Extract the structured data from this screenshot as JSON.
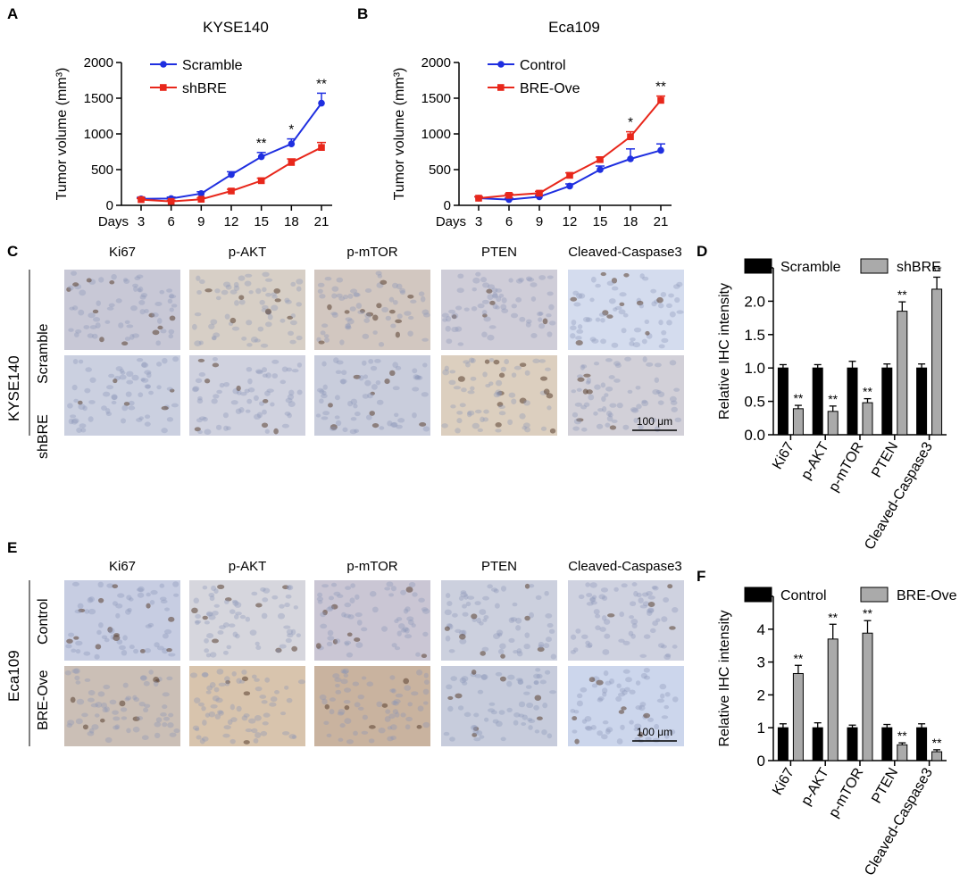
{
  "panels": {
    "A": "A",
    "B": "B",
    "C": "C",
    "D": "D",
    "E": "E",
    "F": "F"
  },
  "images": {
    "markers": [
      "Ki67",
      "p-AKT",
      "p-mTOR",
      "PTEN",
      "Cleaved-Caspase3"
    ],
    "C": {
      "line": "KYSE140",
      "groups": [
        "Scramble",
        "shBRE"
      ],
      "scale_bar": "100 μm"
    },
    "E": {
      "line": "Eca109",
      "groups": [
        "Control",
        "BRE-Ove"
      ],
      "scale_bar": "100 μm"
    }
  },
  "chart_data": [
    {
      "panel": "A",
      "type": "line",
      "title": "KYSE140",
      "ylabel": "Tumor volume (mm³)",
      "xlabel": "Days",
      "x": [
        3,
        6,
        9,
        12,
        15,
        18,
        21
      ],
      "ylim": [
        0,
        2000
      ],
      "yticks": [
        0,
        500,
        1000,
        1500,
        2000
      ],
      "series": [
        {
          "name": "Scramble",
          "color": "#1f2fe0",
          "values": [
            90,
            95,
            165,
            430,
            680,
            860,
            1430
          ],
          "err": [
            20,
            20,
            25,
            40,
            60,
            70,
            140
          ]
        },
        {
          "name": "shBRE",
          "color": "#e8271b",
          "values": [
            80,
            55,
            85,
            200,
            345,
            600,
            810
          ],
          "err": [
            15,
            15,
            20,
            25,
            35,
            50,
            70
          ]
        }
      ],
      "annotations": [
        "",
        "",
        "",
        "",
        "**",
        "*",
        "**"
      ]
    },
    {
      "panel": "B",
      "type": "line",
      "title": "Eca109",
      "ylabel": "Tumor volume (mm³)",
      "xlabel": "Days",
      "x": [
        3,
        6,
        9,
        12,
        15,
        18,
        21
      ],
      "ylim": [
        0,
        2000
      ],
      "yticks": [
        0,
        500,
        1000,
        1500,
        2000
      ],
      "series": [
        {
          "name": "Control",
          "color": "#1f2fe0",
          "values": [
            100,
            80,
            120,
            270,
            500,
            650,
            770
          ],
          "err": [
            20,
            20,
            20,
            30,
            50,
            140,
            90
          ]
        },
        {
          "name": "BRE-Ove",
          "color": "#e8271b",
          "values": [
            100,
            140,
            170,
            420,
            640,
            960,
            1470
          ],
          "err": [
            20,
            20,
            25,
            35,
            35,
            70,
            60
          ]
        }
      ],
      "annotations": [
        "",
        "",
        "",
        "",
        "",
        "*",
        "**"
      ]
    },
    {
      "panel": "D",
      "type": "bar",
      "ylabel": "Relative IHC intensity",
      "categories": [
        "Ki67",
        "p-AKT",
        "p-mTOR",
        "PTEN",
        "Cleaved-Caspase3"
      ],
      "ylim": [
        0,
        2.5
      ],
      "yticks": [
        0.0,
        0.5,
        1.0,
        1.5,
        2.0,
        2.5
      ],
      "tick_decimals": 1,
      "series": [
        {
          "name": "Scramble",
          "color": "#000000",
          "values": [
            1.0,
            1.0,
            1.0,
            1.0,
            1.0
          ],
          "err": [
            0.05,
            0.05,
            0.1,
            0.06,
            0.06
          ]
        },
        {
          "name": "shBRE",
          "color": "#aaaaaa",
          "values": [
            0.39,
            0.35,
            0.48,
            1.85,
            2.18
          ],
          "err": [
            0.05,
            0.08,
            0.06,
            0.14,
            0.18
          ]
        }
      ],
      "annotations": [
        "**",
        "**",
        "**",
        "**",
        "**"
      ]
    },
    {
      "panel": "F",
      "type": "bar",
      "ylabel": "Relative IHC intensity",
      "categories": [
        "Ki67",
        "p-AKT",
        "p-mTOR",
        "PTEN",
        "Cleaved-Caspase3"
      ],
      "ylim": [
        0,
        5
      ],
      "yticks": [
        0,
        1,
        2,
        3,
        4,
        5
      ],
      "tick_decimals": 0,
      "series": [
        {
          "name": "Control",
          "color": "#000000",
          "values": [
            1.0,
            1.0,
            1.0,
            1.0,
            1.0
          ],
          "err": [
            0.12,
            0.15,
            0.08,
            0.1,
            0.12
          ]
        },
        {
          "name": "BRE-Ove",
          "color": "#aaaaaa",
          "values": [
            2.65,
            3.7,
            3.88,
            0.48,
            0.27
          ],
          "err": [
            0.25,
            0.45,
            0.38,
            0.06,
            0.06
          ]
        }
      ],
      "annotations": [
        "**",
        "**",
        "**",
        "**",
        "**"
      ]
    }
  ]
}
